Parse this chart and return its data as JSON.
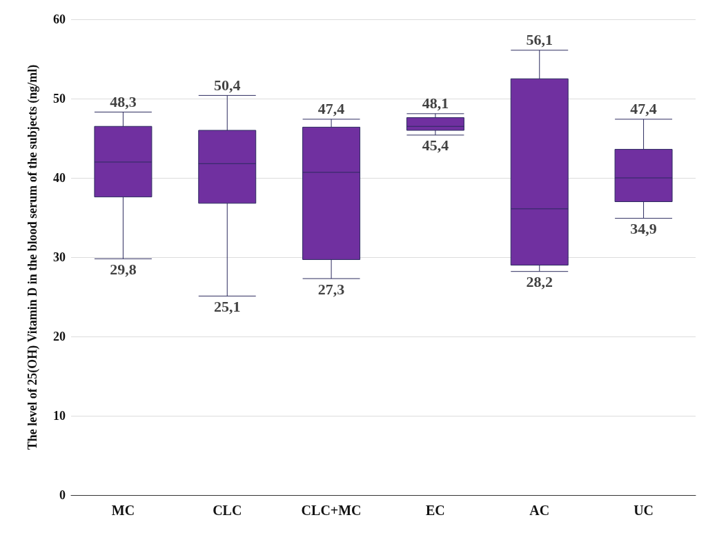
{
  "chart_data": {
    "type": "box",
    "ylabel": "The level of 25(OH) Vitamin D in the blood serum of the subjects (ng/ml)",
    "categories": [
      "MC",
      "CLC",
      "CLC+MC",
      "EC",
      "AC",
      "UC"
    ],
    "color": "#7030a0",
    "boxes": [
      {
        "low": 29.8,
        "q1": 37.6,
        "median": 42,
        "q3": 46.5,
        "high": 48.3
      },
      {
        "low": 25.1,
        "q1": 36.8,
        "median": 41.8,
        "q3": 46,
        "high": 50.4
      },
      {
        "low": 27.3,
        "q1": 29.7,
        "median": 40.7,
        "q3": 46.4,
        "high": 47.4
      },
      {
        "low": 45.4,
        "q1": 46,
        "median": 46.5,
        "q3": 47.6,
        "high": 48.1
      },
      {
        "low": 28.2,
        "q1": 29,
        "median": 36.1,
        "q3": 52.5,
        "high": 56.1
      },
      {
        "low": 34.9,
        "q1": 37,
        "median": 40,
        "q3": 43.6,
        "high": 47.4
      }
    ],
    "ylim": [
      0,
      60
    ],
    "yticks": [
      0,
      10,
      20,
      30,
      40,
      50,
      60
    ],
    "grid": "y",
    "annotations": [
      {
        "text": "48,3",
        "x": "MC",
        "y": 48.3
      },
      {
        "text": "29,8",
        "x": "MC",
        "y": 29.8
      },
      {
        "text": "50,4",
        "x": "CLC",
        "y": 50.4
      },
      {
        "text": "25,1",
        "x": "CLC",
        "y": 25.1
      },
      {
        "text": "47,4",
        "x": "CLC+MC",
        "y": 47.4
      },
      {
        "text": "27,3",
        "x": "CLC+MC",
        "y": 27.3
      },
      {
        "text": "48,1",
        "x": "EC",
        "y": 48.1
      },
      {
        "text": "45,4",
        "x": "EC",
        "y": 45.4
      },
      {
        "text": "56,1",
        "x": "AC",
        "y": 56.1
      },
      {
        "text": "28,2",
        "x": "AC",
        "y": 28.2
      },
      {
        "text": "47,4",
        "x": "UC",
        "y": 47.4
      },
      {
        "text": "34,9",
        "x": "UC",
        "y": 34.9
      }
    ]
  }
}
